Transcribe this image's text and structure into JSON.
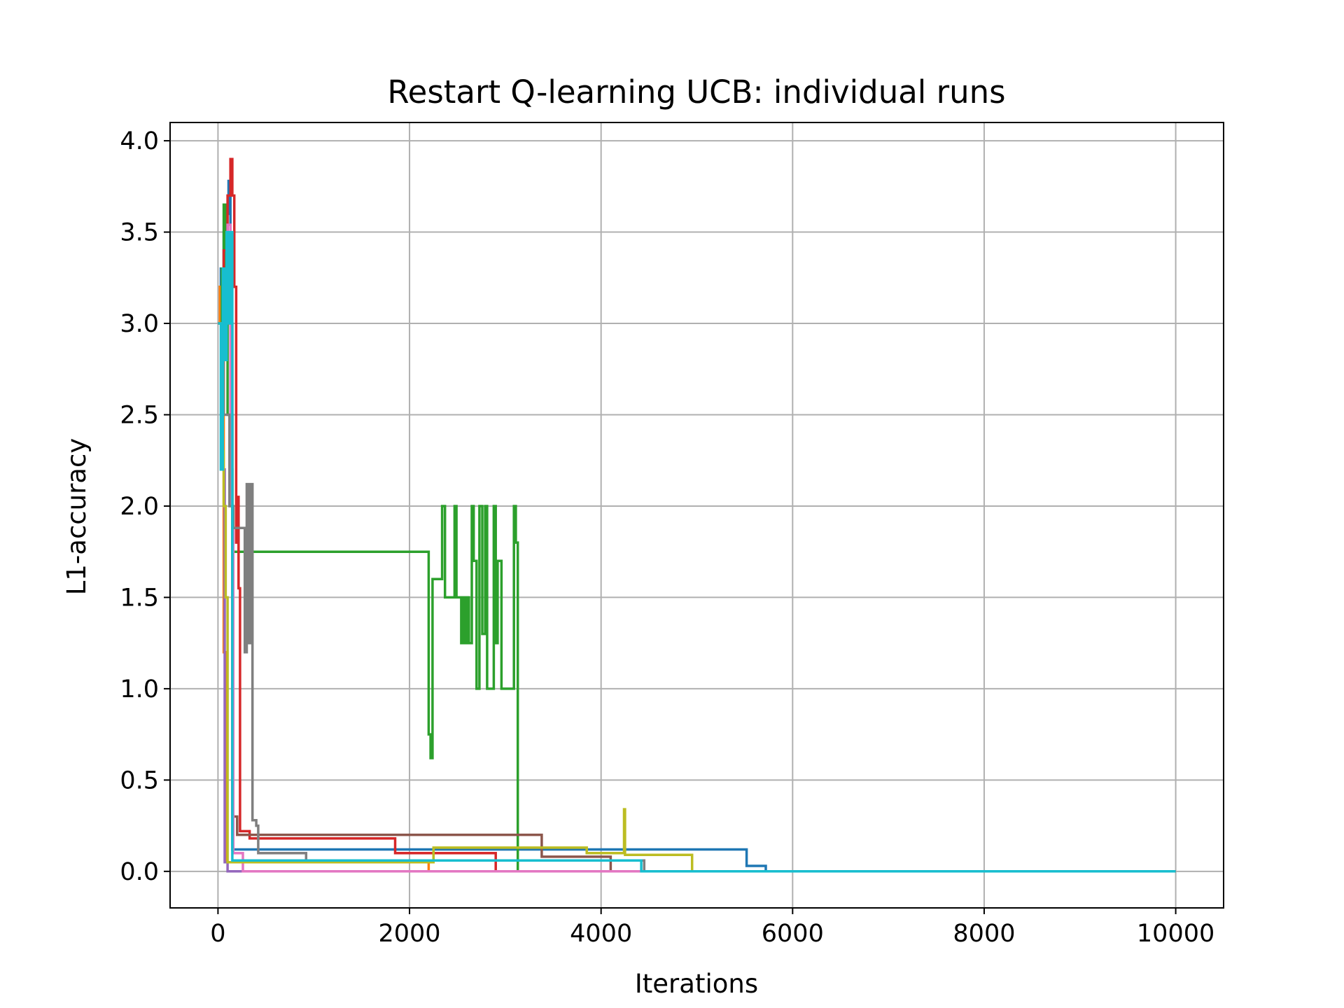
{
  "chart_data": {
    "type": "line",
    "title": "Restart Q-learning UCB: individual runs",
    "xlabel": "Iterations",
    "ylabel": "L1-accuracy",
    "xlim": [
      -500,
      10500
    ],
    "ylim": [
      -0.2,
      4.1
    ],
    "xticks": [
      0,
      2000,
      4000,
      6000,
      8000,
      10000
    ],
    "yticks": [
      0.0,
      0.5,
      1.0,
      1.5,
      2.0,
      2.5,
      3.0,
      3.5,
      4.0
    ],
    "xtick_labels": [
      "0",
      "2000",
      "4000",
      "6000",
      "8000",
      "10000"
    ],
    "ytick_labels": [
      "0.0",
      "0.5",
      "1.0",
      "1.5",
      "2.0",
      "2.5",
      "3.0",
      "3.5",
      "4.0"
    ],
    "grid": true,
    "series": [
      {
        "color": "#1f77b4",
        "step": true,
        "points": [
          [
            0,
            3.0
          ],
          [
            30,
            3.3
          ],
          [
            60,
            3.5
          ],
          [
            90,
            3.6
          ],
          [
            110,
            3.78
          ],
          [
            130,
            2.2
          ],
          [
            150,
            0.12
          ],
          [
            700,
            0.12
          ],
          [
            4000,
            0.12
          ],
          [
            4600,
            0.12
          ],
          [
            5500,
            0.12
          ],
          [
            5520,
            0.03
          ],
          [
            5720,
            0.03
          ],
          [
            5720,
            0.0
          ],
          [
            10000,
            0.0
          ]
        ]
      },
      {
        "color": "#ff7f0e",
        "step": true,
        "points": [
          [
            0,
            3.0
          ],
          [
            20,
            3.2
          ],
          [
            40,
            2.9
          ],
          [
            60,
            1.2
          ],
          [
            80,
            0.05
          ],
          [
            2200,
            0.04
          ],
          [
            2200,
            0.0
          ],
          [
            10000,
            0.0
          ]
        ]
      },
      {
        "color": "#2ca02c",
        "step": true,
        "points": [
          [
            0,
            3.0
          ],
          [
            40,
            3.3
          ],
          [
            60,
            3.65
          ],
          [
            80,
            3.2
          ],
          [
            100,
            2.5
          ],
          [
            150,
            1.75
          ],
          [
            2180,
            1.75
          ],
          [
            2200,
            0.75
          ],
          [
            2220,
            0.62
          ],
          [
            2240,
            1.6
          ],
          [
            2320,
            1.6
          ],
          [
            2340,
            2.0
          ],
          [
            2370,
            1.5
          ],
          [
            2450,
            1.5
          ],
          [
            2470,
            2.0
          ],
          [
            2490,
            1.5
          ],
          [
            2520,
            1.5
          ],
          [
            2540,
            1.25
          ],
          [
            2560,
            1.5
          ],
          [
            2580,
            1.25
          ],
          [
            2600,
            1.5
          ],
          [
            2620,
            1.25
          ],
          [
            2650,
            2.0
          ],
          [
            2670,
            1.7
          ],
          [
            2700,
            1.0
          ],
          [
            2730,
            2.0
          ],
          [
            2760,
            1.3
          ],
          [
            2790,
            2.0
          ],
          [
            2810,
            1.0
          ],
          [
            2850,
            1.0
          ],
          [
            2880,
            2.0
          ],
          [
            2900,
            1.25
          ],
          [
            2920,
            1.7
          ],
          [
            2960,
            1.0
          ],
          [
            3080,
            1.0
          ],
          [
            3090,
            2.0
          ],
          [
            3110,
            1.8
          ],
          [
            3130,
            0.0
          ],
          [
            10000,
            0.0
          ]
        ]
      },
      {
        "color": "#d62728",
        "step": true,
        "points": [
          [
            0,
            3.0
          ],
          [
            60,
            3.4
          ],
          [
            100,
            3.7
          ],
          [
            130,
            3.9
          ],
          [
            150,
            3.7
          ],
          [
            170,
            3.2
          ],
          [
            190,
            1.8
          ],
          [
            200,
            2.05
          ],
          [
            215,
            1.55
          ],
          [
            230,
            0.22
          ],
          [
            300,
            0.22
          ],
          [
            330,
            0.18
          ],
          [
            1850,
            0.18
          ],
          [
            1850,
            0.1
          ],
          [
            2900,
            0.1
          ],
          [
            2900,
            0.0
          ],
          [
            10000,
            0.0
          ]
        ]
      },
      {
        "color": "#9467bd",
        "step": true,
        "points": [
          [
            0,
            3.0
          ],
          [
            40,
            2.2
          ],
          [
            70,
            0.05
          ],
          [
            100,
            0.0
          ],
          [
            10000,
            0.0
          ]
        ]
      },
      {
        "color": "#8c564b",
        "step": true,
        "points": [
          [
            0,
            3.0
          ],
          [
            50,
            3.3
          ],
          [
            100,
            3.0
          ],
          [
            150,
            0.3
          ],
          [
            200,
            0.2
          ],
          [
            3380,
            0.2
          ],
          [
            3380,
            0.08
          ],
          [
            4100,
            0.08
          ],
          [
            4100,
            0.0
          ],
          [
            10000,
            0.0
          ]
        ]
      },
      {
        "color": "#e377c2",
        "step": true,
        "points": [
          [
            0,
            3.0
          ],
          [
            40,
            2.9
          ],
          [
            70,
            3.3
          ],
          [
            100,
            3.54
          ],
          [
            130,
            2.0
          ],
          [
            160,
            0.1
          ],
          [
            260,
            0.1
          ],
          [
            260,
            0.0
          ],
          [
            10000,
            0.0
          ]
        ]
      },
      {
        "color": "#7f7f7f",
        "step": true,
        "points": [
          [
            0,
            3.0
          ],
          [
            60,
            2.5
          ],
          [
            120,
            2.0
          ],
          [
            160,
            1.88
          ],
          [
            260,
            1.88
          ],
          [
            280,
            1.2
          ],
          [
            300,
            2.12
          ],
          [
            320,
            1.25
          ],
          [
            340,
            2.12
          ],
          [
            360,
            0.28
          ],
          [
            400,
            0.25
          ],
          [
            420,
            0.1
          ],
          [
            920,
            0.1
          ],
          [
            920,
            0.06
          ],
          [
            4450,
            0.06
          ],
          [
            4450,
            0.0
          ],
          [
            10000,
            0.0
          ]
        ]
      },
      {
        "color": "#bcbd22",
        "step": true,
        "points": [
          [
            0,
            3.0
          ],
          [
            40,
            2.3
          ],
          [
            60,
            2.0
          ],
          [
            80,
            1.5
          ],
          [
            100,
            0.05
          ],
          [
            2250,
            0.05
          ],
          [
            2250,
            0.13
          ],
          [
            3850,
            0.13
          ],
          [
            3850,
            0.1
          ],
          [
            4230,
            0.1
          ],
          [
            4240,
            0.34
          ],
          [
            4250,
            0.09
          ],
          [
            4950,
            0.09
          ],
          [
            4950,
            0.0
          ],
          [
            10000,
            0.0
          ]
        ]
      },
      {
        "color": "#17becf",
        "step": true,
        "points": [
          [
            0,
            3.0
          ],
          [
            30,
            2.2
          ],
          [
            50,
            3.3
          ],
          [
            70,
            2.8
          ],
          [
            90,
            3.5
          ],
          [
            110,
            3.0
          ],
          [
            130,
            3.5
          ],
          [
            150,
            0.06
          ],
          [
            4420,
            0.06
          ],
          [
            4420,
            0.0
          ],
          [
            10000,
            0.0
          ]
        ]
      }
    ]
  }
}
